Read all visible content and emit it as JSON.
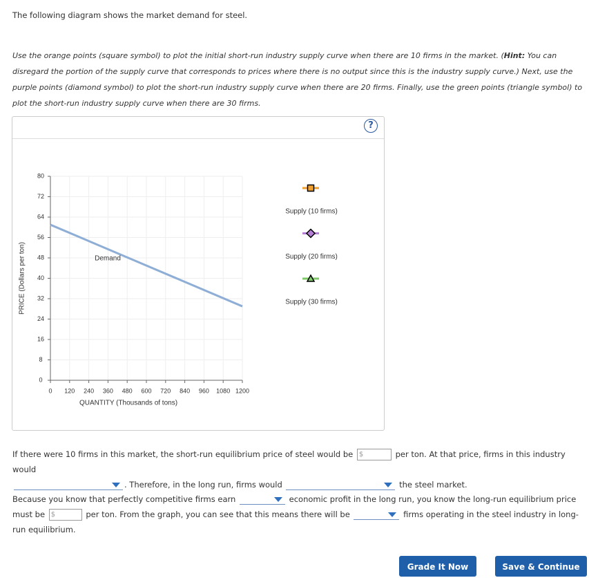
{
  "intro": "The following diagram shows the market demand for steel.",
  "instructions": {
    "before_hint": "Use the orange points (square symbol) to plot the initial short-run industry supply curve when there are 10 firms in the market. (",
    "hint_label": "Hint:",
    "after_hint": " You can disregard the portion of the supply curve that corresponds to prices where there is no output since this is the industry supply curve.) Next, use the purple points (diamond symbol) to plot the short-run industry supply curve when there are 20 firms. Finally, use the green points (triangle symbol) to plot the short-run industry supply curve when there are 30 firms."
  },
  "help_icon": "?",
  "chart": {
    "type": "line",
    "x_label": "QUANTITY (Thousands of tons)",
    "y_label": "PRICE (Dollars per ton)",
    "xlim": [
      0,
      1200
    ],
    "xticks": [
      0,
      120,
      240,
      360,
      480,
      600,
      720,
      840,
      960,
      1080,
      1200
    ],
    "ylim": [
      0,
      80
    ],
    "yticks": [
      0,
      8,
      16,
      24,
      32,
      40,
      48,
      56,
      64,
      72,
      80
    ],
    "grid": true,
    "series": [
      {
        "name": "Demand",
        "color": "#8eaed6",
        "x": [
          0,
          1200
        ],
        "values": [
          61,
          29
        ]
      }
    ],
    "legend": [
      {
        "name": "Supply (10 firms)",
        "color": "#f0a030",
        "marker": "square"
      },
      {
        "name": "Supply (20 firms)",
        "color": "#b57fd6",
        "marker": "diamond"
      },
      {
        "name": "Supply (30 firms)",
        "color": "#7fc96a",
        "marker": "triangle"
      }
    ]
  },
  "question1": {
    "t1": "If there were 10 firms in this market, the short-run equilibrium price of steel would be",
    "currency": "$",
    "t2": "per ton. At that price, firms in this industry would",
    "t3": ". Therefore, in the long run, firms would",
    "t4": "the steel market."
  },
  "question2": {
    "t1": "Because you know that perfectly competitive firms earn",
    "t2": "economic profit in the long run, you know the long-run equilibrium price must be",
    "currency": "$",
    "t3": "per ton. From the graph, you can see that this means there will be",
    "t4": "firms operating in the steel industry in long-run equilibrium."
  },
  "buttons": [
    "Grade It Now",
    "Save & Continue"
  ]
}
